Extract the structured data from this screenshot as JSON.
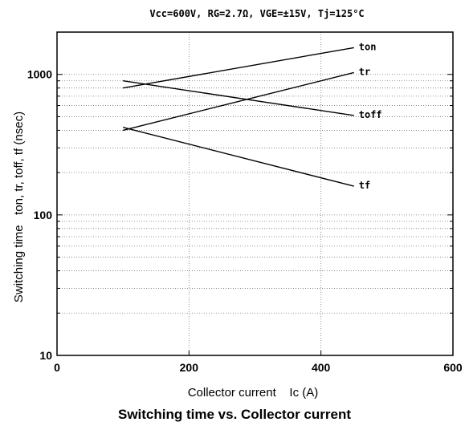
{
  "chart_data": {
    "type": "line",
    "conditions": "Vcc=600V, RG=2.7Ω, VGE=±15V, Tj=125°C",
    "title": "Switching time vs. Collector current",
    "xlabel": "Collector current    Ic (A)",
    "ylabel": "Switching time   ton, tr, toff, tf (nsec)",
    "xlim": [
      0,
      600
    ],
    "ylim": [
      10,
      2000
    ],
    "yscale": "log",
    "xticks": [
      {
        "value": 0,
        "label": "0"
      },
      {
        "value": 200,
        "label": "200"
      },
      {
        "value": 400,
        "label": "400"
      },
      {
        "value": 600,
        "label": "600"
      }
    ],
    "yticks": [
      {
        "value": 10,
        "label": "10"
      },
      {
        "value": 100,
        "label": "100"
      },
      {
        "value": 1000,
        "label": "1000"
      }
    ],
    "grid": true,
    "series": [
      {
        "name": "ton",
        "x": [
          100,
          450
        ],
        "y": [
          800,
          1550
        ]
      },
      {
        "name": "tr",
        "x": [
          100,
          450
        ],
        "y": [
          400,
          1030
        ]
      },
      {
        "name": "toff",
        "x": [
          100,
          450
        ],
        "y": [
          900,
          510
        ]
      },
      {
        "name": "tf",
        "x": [
          100,
          450
        ],
        "y": [
          420,
          160
        ]
      }
    ]
  }
}
